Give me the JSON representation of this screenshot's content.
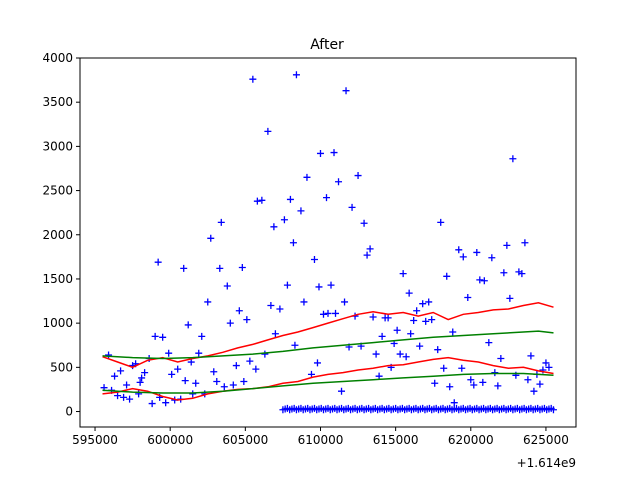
{
  "chart_data": {
    "type": "scatter",
    "title": "After",
    "xlabel": "",
    "ylabel": "",
    "x_offset_label": "+1.614e9",
    "xlim": [
      594000,
      627000
    ],
    "ylim": [
      -175,
      4000
    ],
    "x_ticks": [
      595000,
      600000,
      605000,
      610000,
      615000,
      620000,
      625000
    ],
    "x_tick_labels": [
      "595000",
      "600000",
      "605000",
      "610000",
      "615000",
      "620000",
      "625000"
    ],
    "y_ticks": [
      0,
      500,
      1000,
      1500,
      2000,
      2500,
      3000,
      3500,
      4000
    ],
    "y_tick_labels": [
      "0",
      "500",
      "1000",
      "1500",
      "2000",
      "2500",
      "3000",
      "3500",
      "4000"
    ],
    "grid": false,
    "colors": {
      "points": "#0000ff",
      "upper_bound": "#ff0000",
      "trend": "#008000",
      "axes": "#000000"
    },
    "series": [
      {
        "kind": "scatter",
        "marker": "plus",
        "color": "#0000ff",
        "points": [
          [
            595600,
            270
          ],
          [
            595900,
            640
          ],
          [
            596100,
            240
          ],
          [
            596300,
            400
          ],
          [
            596500,
            180
          ],
          [
            596700,
            460
          ],
          [
            596900,
            160
          ],
          [
            597100,
            300
          ],
          [
            597300,
            140
          ],
          [
            597500,
            520
          ],
          [
            597700,
            540
          ],
          [
            597900,
            200
          ],
          [
            598000,
            330
          ],
          [
            598100,
            380
          ],
          [
            598300,
            440
          ],
          [
            598600,
            600
          ],
          [
            598800,
            90
          ],
          [
            599000,
            850
          ],
          [
            599200,
            1690
          ],
          [
            599300,
            160
          ],
          [
            599500,
            840
          ],
          [
            599700,
            100
          ],
          [
            599900,
            660
          ],
          [
            600100,
            420
          ],
          [
            600300,
            130
          ],
          [
            600500,
            480
          ],
          [
            600700,
            140
          ],
          [
            600900,
            1620
          ],
          [
            601000,
            350
          ],
          [
            601200,
            980
          ],
          [
            601400,
            560
          ],
          [
            601500,
            200
          ],
          [
            601700,
            320
          ],
          [
            601900,
            660
          ],
          [
            602100,
            850
          ],
          [
            602300,
            200
          ],
          [
            602500,
            1240
          ],
          [
            602700,
            1960
          ],
          [
            602900,
            450
          ],
          [
            603100,
            340
          ],
          [
            603300,
            1620
          ],
          [
            603400,
            2140
          ],
          [
            603600,
            280
          ],
          [
            603800,
            1420
          ],
          [
            604000,
            1000
          ],
          [
            604200,
            300
          ],
          [
            604400,
            520
          ],
          [
            604600,
            1140
          ],
          [
            604800,
            1630
          ],
          [
            604900,
            340
          ],
          [
            605100,
            1040
          ],
          [
            605300,
            570
          ],
          [
            605500,
            3760
          ],
          [
            605700,
            480
          ],
          [
            605800,
            2380
          ],
          [
            606100,
            2390
          ],
          [
            606300,
            650
          ],
          [
            606500,
            3170
          ],
          [
            606700,
            1200
          ],
          [
            606900,
            2090
          ],
          [
            607000,
            880
          ],
          [
            607300,
            1160
          ],
          [
            607600,
            2170
          ],
          [
            607800,
            1430
          ],
          [
            608000,
            2400
          ],
          [
            608200,
            1910
          ],
          [
            608300,
            750
          ],
          [
            608400,
            3810
          ],
          [
            608700,
            2270
          ],
          [
            608900,
            1240
          ],
          [
            609100,
            2650
          ],
          [
            609400,
            420
          ],
          [
            609600,
            1720
          ],
          [
            609800,
            550
          ],
          [
            609900,
            1410
          ],
          [
            610000,
            2920
          ],
          [
            610200,
            1100
          ],
          [
            610400,
            2420
          ],
          [
            610500,
            1110
          ],
          [
            610700,
            1430
          ],
          [
            610900,
            2930
          ],
          [
            611000,
            1110
          ],
          [
            611200,
            2600
          ],
          [
            611400,
            230
          ],
          [
            611600,
            1240
          ],
          [
            611700,
            3630
          ],
          [
            611900,
            730
          ],
          [
            612100,
            2310
          ],
          [
            612300,
            1080
          ],
          [
            612500,
            2670
          ],
          [
            612700,
            740
          ],
          [
            612900,
            2130
          ],
          [
            613100,
            1770
          ],
          [
            613300,
            1840
          ],
          [
            613500,
            1070
          ],
          [
            613700,
            650
          ],
          [
            613900,
            400
          ],
          [
            614100,
            850
          ],
          [
            614300,
            1060
          ],
          [
            614500,
            1060
          ],
          [
            614700,
            500
          ],
          [
            614900,
            770
          ],
          [
            615100,
            920
          ],
          [
            615300,
            650
          ],
          [
            615500,
            1560
          ],
          [
            615700,
            620
          ],
          [
            615900,
            1340
          ],
          [
            616000,
            880
          ],
          [
            616200,
            1030
          ],
          [
            616400,
            1140
          ],
          [
            616600,
            740
          ],
          [
            616800,
            1220
          ],
          [
            617000,
            1020
          ],
          [
            617200,
            1240
          ],
          [
            617400,
            1040
          ],
          [
            617600,
            320
          ],
          [
            617800,
            700
          ],
          [
            618000,
            2140
          ],
          [
            618200,
            490
          ],
          [
            618400,
            1530
          ],
          [
            618600,
            280
          ],
          [
            618800,
            900
          ],
          [
            618900,
            100
          ],
          [
            619200,
            1830
          ],
          [
            619400,
            490
          ],
          [
            619500,
            1750
          ],
          [
            619800,
            1290
          ],
          [
            620000,
            360
          ],
          [
            620200,
            300
          ],
          [
            620400,
            1800
          ],
          [
            620600,
            1490
          ],
          [
            620800,
            330
          ],
          [
            620900,
            1480
          ],
          [
            621200,
            780
          ],
          [
            621400,
            1740
          ],
          [
            621600,
            440
          ],
          [
            621800,
            290
          ],
          [
            622000,
            600
          ],
          [
            622200,
            1570
          ],
          [
            622400,
            1880
          ],
          [
            622600,
            1280
          ],
          [
            622800,
            2860
          ],
          [
            623000,
            410
          ],
          [
            623200,
            1580
          ],
          [
            623400,
            1560
          ],
          [
            623600,
            1910
          ],
          [
            623800,
            360
          ],
          [
            624000,
            630
          ],
          [
            624200,
            230
          ],
          [
            624400,
            420
          ],
          [
            624600,
            310
          ],
          [
            624800,
            470
          ],
          [
            625000,
            550
          ],
          [
            625200,
            500
          ]
        ],
        "baseline_band": {
          "x_from": 607500,
          "x_to": 625600,
          "y": 20,
          "step": 150
        }
      },
      {
        "kind": "line",
        "color": "#ff0000",
        "name_hint": "upper",
        "points": [
          [
            595500,
            620
          ],
          [
            596500,
            560
          ],
          [
            597500,
            500
          ],
          [
            598500,
            580
          ],
          [
            599500,
            610
          ],
          [
            600500,
            560
          ],
          [
            601500,
            600
          ],
          [
            602500,
            630
          ],
          [
            603500,
            670
          ],
          [
            604500,
            720
          ],
          [
            605500,
            760
          ],
          [
            606500,
            810
          ],
          [
            607500,
            860
          ],
          [
            608500,
            900
          ],
          [
            609500,
            950
          ],
          [
            610500,
            1000
          ],
          [
            611500,
            1050
          ],
          [
            612500,
            1100
          ],
          [
            613500,
            1130
          ],
          [
            614500,
            1100
          ],
          [
            615500,
            1120
          ],
          [
            616500,
            1080
          ],
          [
            617500,
            1120
          ],
          [
            618500,
            1040
          ],
          [
            619500,
            1100
          ],
          [
            620500,
            1120
          ],
          [
            621500,
            1150
          ],
          [
            622500,
            1160
          ],
          [
            623500,
            1200
          ],
          [
            624500,
            1230
          ],
          [
            625500,
            1180
          ]
        ]
      },
      {
        "kind": "line",
        "color": "#008000",
        "name_hint": "upper-trend",
        "points": [
          [
            595500,
            630
          ],
          [
            597500,
            610
          ],
          [
            599500,
            600
          ],
          [
            601500,
            610
          ],
          [
            603500,
            630
          ],
          [
            605500,
            650
          ],
          [
            607500,
            680
          ],
          [
            609500,
            720
          ],
          [
            611500,
            750
          ],
          [
            613500,
            780
          ],
          [
            615500,
            810
          ],
          [
            617500,
            840
          ],
          [
            619500,
            860
          ],
          [
            621500,
            880
          ],
          [
            623500,
            900
          ],
          [
            624500,
            910
          ],
          [
            625500,
            890
          ]
        ]
      },
      {
        "kind": "line",
        "color": "#ff0000",
        "name_hint": "lower",
        "points": [
          [
            595500,
            200
          ],
          [
            596500,
            220
          ],
          [
            597500,
            260
          ],
          [
            598500,
            230
          ],
          [
            599500,
            170
          ],
          [
            600500,
            130
          ],
          [
            601500,
            150
          ],
          [
            602500,
            200
          ],
          [
            603500,
            230
          ],
          [
            604500,
            250
          ],
          [
            605500,
            260
          ],
          [
            606500,
            280
          ],
          [
            607500,
            320
          ],
          [
            608500,
            340
          ],
          [
            609500,
            390
          ],
          [
            610500,
            420
          ],
          [
            611500,
            440
          ],
          [
            612500,
            470
          ],
          [
            613500,
            490
          ],
          [
            614500,
            520
          ],
          [
            615500,
            530
          ],
          [
            616500,
            560
          ],
          [
            617500,
            590
          ],
          [
            618500,
            610
          ],
          [
            619500,
            580
          ],
          [
            620500,
            560
          ],
          [
            621500,
            520
          ],
          [
            622500,
            490
          ],
          [
            623500,
            500
          ],
          [
            624500,
            460
          ],
          [
            625500,
            430
          ]
        ]
      },
      {
        "kind": "line",
        "color": "#008000",
        "name_hint": "lower-trend",
        "points": [
          [
            595500,
            240
          ],
          [
            597500,
            220
          ],
          [
            599500,
            210
          ],
          [
            601500,
            210
          ],
          [
            603500,
            230
          ],
          [
            605500,
            260
          ],
          [
            607500,
            290
          ],
          [
            609500,
            320
          ],
          [
            611500,
            340
          ],
          [
            613500,
            360
          ],
          [
            615500,
            380
          ],
          [
            617500,
            400
          ],
          [
            619500,
            420
          ],
          [
            621500,
            430
          ],
          [
            623500,
            430
          ],
          [
            625500,
            410
          ]
        ]
      }
    ]
  }
}
